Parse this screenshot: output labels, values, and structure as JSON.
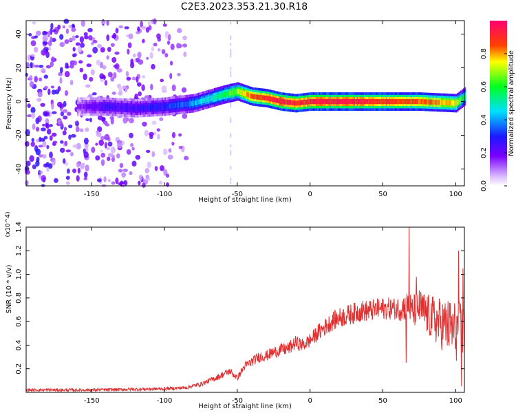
{
  "title": "C2E3.2023.353.21.30.R18",
  "chart_data": [
    {
      "type": "heatmap",
      "xlabel": "Height of straight line (km)",
      "ylabel": "Frequency (Hz)",
      "xlim": [
        -195,
        106
      ],
      "ylim": [
        -50,
        48
      ],
      "xticks": [
        -150,
        -100,
        -50,
        0,
        50,
        100
      ],
      "yticks": [
        -40,
        -20,
        0,
        20,
        40
      ],
      "grid": false,
      "colorbar": {
        "label": "Normalized spectral amplitude",
        "range": [
          0,
          1
        ],
        "ticks": [
          "0.0",
          "0.2",
          "0.4",
          "0.6",
          "0.8"
        ],
        "colormap": "rainbow (white to purple to blue to cyan to green to yellow to red)"
      },
      "ridge": {
        "x": [
          -160,
          -140,
          -120,
          -100,
          -80,
          -60,
          -50,
          -40,
          -30,
          -20,
          -10,
          0,
          25,
          50,
          75,
          100,
          106
        ],
        "frequency_hz": [
          -3,
          -3,
          -4,
          -3,
          -1,
          4,
          6,
          3,
          2,
          0,
          -1,
          0,
          0,
          0,
          0,
          -1,
          3
        ],
        "amplitude": [
          0.15,
          0.25,
          0.25,
          0.3,
          0.4,
          0.55,
          0.7,
          0.85,
          0.9,
          0.95,
          0.9,
          0.95,
          0.95,
          0.9,
          0.85,
          0.75,
          0.5
        ]
      },
      "noise_region": {
        "x_range": [
          -195,
          -85
        ],
        "frequency_range_hz": [
          -50,
          48
        ],
        "amplitude_range": [
          0.05,
          0.3
        ]
      }
    },
    {
      "type": "line",
      "xlabel": "Height of straight line (km)",
      "ylabel": "SNR (10 * v/v)",
      "y_multiplier": "(x10^4)",
      "xlim": [
        -195,
        106
      ],
      "ylim": [
        0,
        1.4
      ],
      "xticks": [
        -150,
        -100,
        -50,
        0,
        50,
        100
      ],
      "yticks": [
        "0.2",
        "0.4",
        "0.6",
        "0.8",
        "1.0",
        "1.2",
        "1.4"
      ],
      "grid": false,
      "color": "#e03030",
      "series": [
        {
          "x": [
            -195,
            -150,
            -100,
            -85,
            -75,
            -65,
            -60,
            -55,
            -50,
            -45,
            -40,
            -35,
            -30,
            -25,
            -20,
            -15,
            -10,
            -5,
            0,
            5,
            10,
            15,
            20,
            25,
            30,
            35,
            40,
            45,
            50,
            55,
            60,
            65,
            68,
            70,
            75,
            80,
            85,
            90,
            95,
            100,
            103,
            106
          ],
          "values": [
            0.02,
            0.02,
            0.03,
            0.04,
            0.07,
            0.12,
            0.15,
            0.18,
            0.12,
            0.22,
            0.26,
            0.3,
            0.31,
            0.34,
            0.36,
            0.37,
            0.42,
            0.4,
            0.44,
            0.5,
            0.55,
            0.6,
            0.63,
            0.65,
            0.67,
            0.69,
            0.69,
            0.7,
            0.71,
            0.71,
            0.71,
            0.72,
            0.74,
            0.68,
            0.72,
            0.66,
            0.62,
            0.58,
            0.56,
            0.52,
            0.5,
            0.5
          ],
          "spikes": [
            {
              "x": 68,
              "y": 1.42
            },
            {
              "x": 66,
              "y": 0.25
            },
            {
              "x": 73,
              "y": 0.98
            },
            {
              "x": 102,
              "y": 1.2
            },
            {
              "x": 104,
              "y": 0.05
            },
            {
              "x": 105,
              "y": 1.05
            }
          ]
        }
      ]
    }
  ]
}
